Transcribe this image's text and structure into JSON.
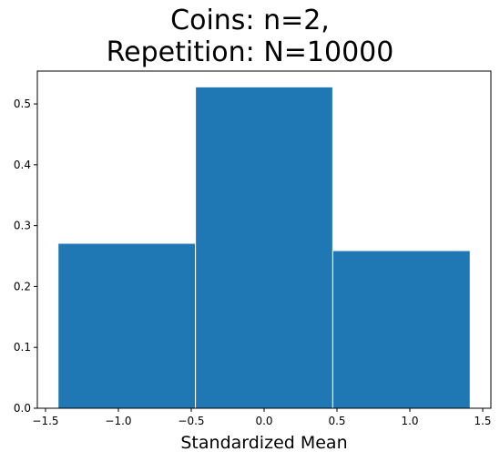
{
  "chart_data": {
    "type": "bar",
    "title_lines": [
      "Coins: n=2,",
      "Repetition: N=10000"
    ],
    "xlabel": "Standardized Mean",
    "ylabel": "",
    "bins": [
      {
        "x0": -1.414,
        "x1": -0.471,
        "value": 0.271
      },
      {
        "x0": -0.471,
        "x1": 0.471,
        "value": 0.528
      },
      {
        "x0": 0.471,
        "x1": 1.414,
        "value": 0.259
      }
    ],
    "xlim": [
      -1.556,
      1.556
    ],
    "ylim": [
      0.0,
      0.554
    ],
    "xticks": [
      -1.5,
      -1.0,
      -0.5,
      0.0,
      0.5,
      1.0,
      1.5
    ],
    "xtick_labels": [
      "−1.5",
      "−1.0",
      "−0.5",
      "0.0",
      "0.5",
      "1.0",
      "1.5"
    ],
    "yticks": [
      0.0,
      0.1,
      0.2,
      0.3,
      0.4,
      0.5
    ],
    "ytick_labels": [
      "0.0",
      "0.1",
      "0.2",
      "0.3",
      "0.4",
      "0.5"
    ],
    "bar_color": "#1f77b4",
    "edge_color": "#ffffff",
    "grid": false
  }
}
